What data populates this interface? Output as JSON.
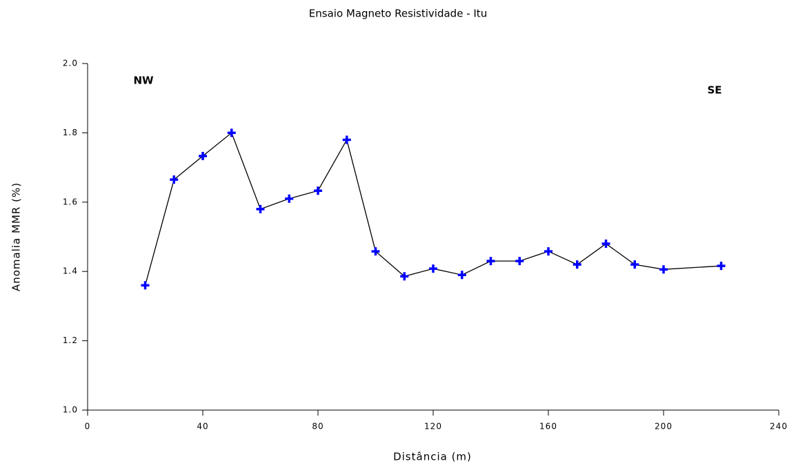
{
  "chart_data": {
    "type": "line",
    "title": "Ensaio Magneto Resistividade - Itu",
    "x_label": "Distância (m)",
    "y_label": "Anomalia MMR (%)",
    "annotations": [
      "NW",
      "SE"
    ],
    "x": [
      20,
      30,
      40,
      50,
      60,
      70,
      80,
      90,
      100,
      110,
      120,
      130,
      140,
      150,
      160,
      170,
      180,
      190,
      200,
      220
    ],
    "series": [
      {
        "name": "Anomalia MMR",
        "color": "#0000ff",
        "line_color": "#000000",
        "values": [
          1.36,
          1.665,
          1.733,
          1.8,
          1.58,
          1.61,
          1.633,
          1.78,
          1.458,
          1.386,
          1.408,
          1.39,
          1.43,
          1.43,
          1.458,
          1.42,
          1.48,
          1.42,
          1.406,
          1.416
        ]
      }
    ],
    "xlim": [
      0,
      240
    ],
    "xticks": [
      0,
      40,
      80,
      120,
      160,
      200,
      240
    ],
    "ylim": [
      1,
      2
    ],
    "yticks": [
      {
        "value": 1,
        "label": "1.0"
      },
      1.2,
      1.4,
      1.6,
      1.8,
      {
        "value": 2,
        "label": "2.0"
      }
    ],
    "grid": false
  }
}
